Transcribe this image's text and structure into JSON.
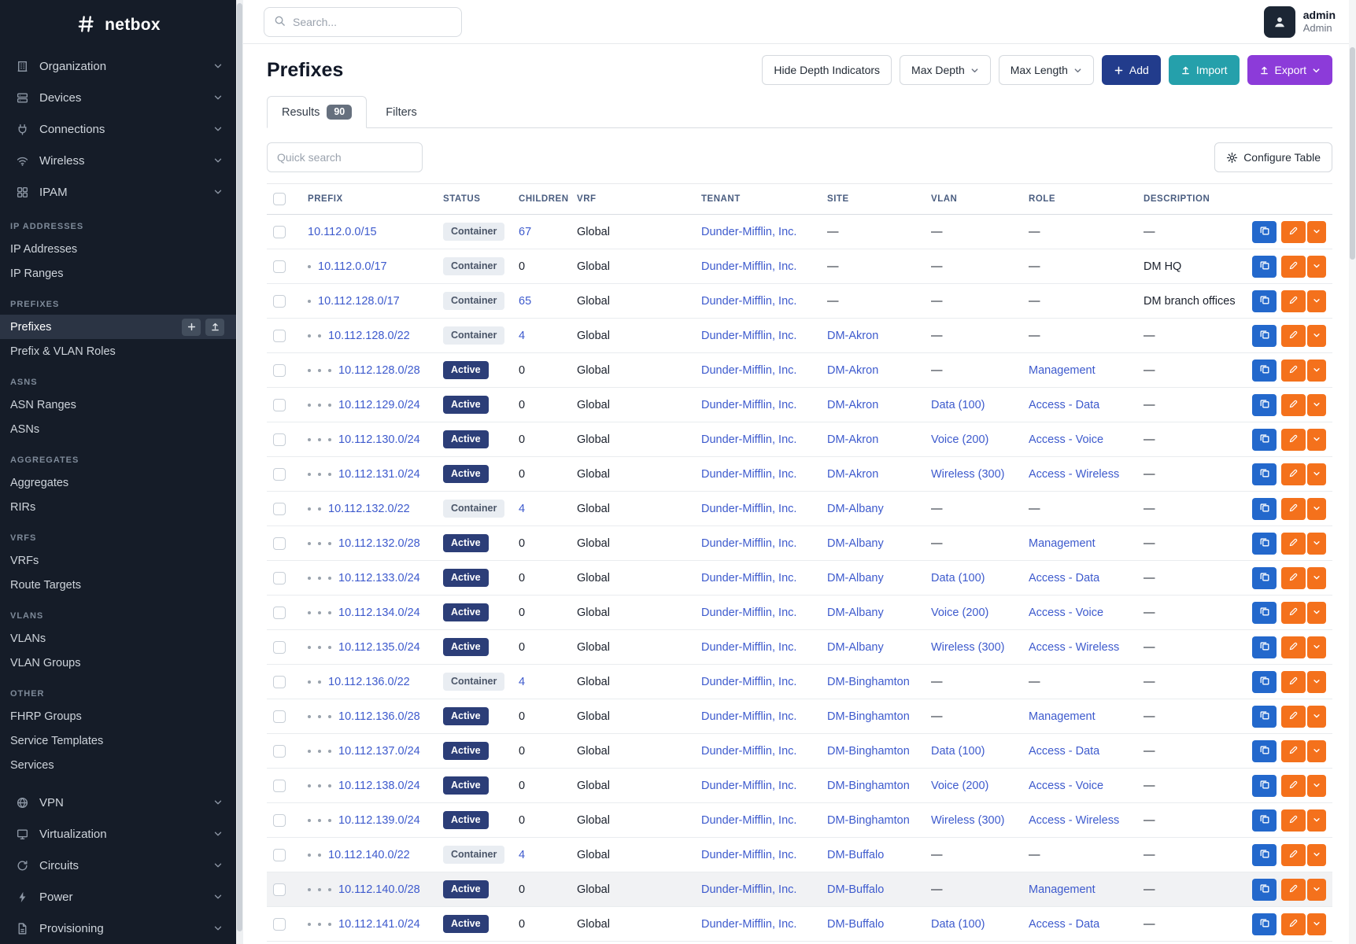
{
  "brand": {
    "name": "netbox"
  },
  "colors": {
    "sidebar-bg": "#151c28",
    "link": "#3d5acd",
    "header-text": "#4a5d80",
    "active-badge": "#2c3e78",
    "container-badge": "#e9edf2",
    "add-button": "#223c8c",
    "import-button": "#25a0ab",
    "export-button": "#8c3bd9",
    "edit-button": "#f4711c",
    "copy-button": "#2368cc"
  },
  "topbar": {
    "search_placeholder": "Search...",
    "user": {
      "name": "admin",
      "role": "Admin"
    }
  },
  "sidebar": {
    "menus": [
      {
        "label": "Organization",
        "icon": "organization-icon"
      },
      {
        "label": "Devices",
        "icon": "devices-icon"
      },
      {
        "label": "Connections",
        "icon": "connections-icon"
      },
      {
        "label": "Wireless",
        "icon": "wireless-icon"
      },
      {
        "label": "IPAM",
        "icon": "ipam-icon"
      }
    ],
    "sections": [
      {
        "title": "IP ADDRESSES",
        "items": [
          {
            "label": "IP Addresses"
          },
          {
            "label": "IP Ranges"
          }
        ]
      },
      {
        "title": "PREFIXES",
        "items": [
          {
            "label": "Prefixes",
            "active": true
          },
          {
            "label": "Prefix & VLAN Roles"
          }
        ]
      },
      {
        "title": "ASNS",
        "items": [
          {
            "label": "ASN Ranges"
          },
          {
            "label": "ASNs"
          }
        ]
      },
      {
        "title": "AGGREGATES",
        "items": [
          {
            "label": "Aggregates"
          },
          {
            "label": "RIRs"
          }
        ]
      },
      {
        "title": "VRFS",
        "items": [
          {
            "label": "VRFs"
          },
          {
            "label": "Route Targets"
          }
        ]
      },
      {
        "title": "VLANS",
        "items": [
          {
            "label": "VLANs"
          },
          {
            "label": "VLAN Groups"
          }
        ]
      },
      {
        "title": "OTHER",
        "items": [
          {
            "label": "FHRP Groups"
          },
          {
            "label": "Service Templates"
          },
          {
            "label": "Services"
          }
        ]
      }
    ],
    "bottom_menus": [
      {
        "label": "VPN",
        "icon": "vpn-icon"
      },
      {
        "label": "Virtualization",
        "icon": "virtualization-icon"
      },
      {
        "label": "Circuits",
        "icon": "circuits-icon"
      },
      {
        "label": "Power",
        "icon": "power-icon"
      },
      {
        "label": "Provisioning",
        "icon": "provisioning-icon"
      }
    ]
  },
  "page": {
    "title": "Prefixes",
    "toolbar": {
      "hide_depth_label": "Hide Depth Indicators",
      "max_depth_label": "Max Depth",
      "max_length_label": "Max Length",
      "add_label": "Add",
      "import_label": "Import",
      "export_label": "Export"
    },
    "tabs": [
      {
        "label": "Results",
        "count": "90",
        "active": true
      },
      {
        "label": "Filters"
      }
    ],
    "quick_search_placeholder": "Quick search",
    "configure_table_label": "Configure Table"
  },
  "table": {
    "columns": [
      "PREFIX",
      "STATUS",
      "CHILDREN",
      "VRF",
      "TENANT",
      "SITE",
      "VLAN",
      "ROLE",
      "DESCRIPTION"
    ],
    "rows": [
      {
        "depth": 0,
        "prefix": "10.112.0.0/15",
        "status": "Container",
        "children": "67",
        "vrf": "Global",
        "tenant": "Dunder-Mifflin, Inc.",
        "site": "—",
        "vlan": "—",
        "role": "—",
        "description": "—"
      },
      {
        "depth": 1,
        "prefix": "10.112.0.0/17",
        "status": "Container",
        "children": "0",
        "vrf": "Global",
        "tenant": "Dunder-Mifflin, Inc.",
        "site": "—",
        "vlan": "—",
        "role": "—",
        "description": "DM HQ"
      },
      {
        "depth": 1,
        "prefix": "10.112.128.0/17",
        "status": "Container",
        "children": "65",
        "vrf": "Global",
        "tenant": "Dunder-Mifflin, Inc.",
        "site": "—",
        "vlan": "—",
        "role": "—",
        "description": "DM branch offices"
      },
      {
        "depth": 2,
        "prefix": "10.112.128.0/22",
        "status": "Container",
        "children": "4",
        "vrf": "Global",
        "tenant": "Dunder-Mifflin, Inc.",
        "site": "DM-Akron",
        "vlan": "—",
        "role": "—",
        "description": "—"
      },
      {
        "depth": 3,
        "prefix": "10.112.128.0/28",
        "status": "Active",
        "children": "0",
        "vrf": "Global",
        "tenant": "Dunder-Mifflin, Inc.",
        "site": "DM-Akron",
        "vlan": "—",
        "role": "Management",
        "description": "—"
      },
      {
        "depth": 3,
        "prefix": "10.112.129.0/24",
        "status": "Active",
        "children": "0",
        "vrf": "Global",
        "tenant": "Dunder-Mifflin, Inc.",
        "site": "DM-Akron",
        "vlan": "Data (100)",
        "role": "Access - Data",
        "description": "—"
      },
      {
        "depth": 3,
        "prefix": "10.112.130.0/24",
        "status": "Active",
        "children": "0",
        "vrf": "Global",
        "tenant": "Dunder-Mifflin, Inc.",
        "site": "DM-Akron",
        "vlan": "Voice (200)",
        "role": "Access - Voice",
        "description": "—"
      },
      {
        "depth": 3,
        "prefix": "10.112.131.0/24",
        "status": "Active",
        "children": "0",
        "vrf": "Global",
        "tenant": "Dunder-Mifflin, Inc.",
        "site": "DM-Akron",
        "vlan": "Wireless (300)",
        "role": "Access - Wireless",
        "description": "—"
      },
      {
        "depth": 2,
        "prefix": "10.112.132.0/22",
        "status": "Container",
        "children": "4",
        "vrf": "Global",
        "tenant": "Dunder-Mifflin, Inc.",
        "site": "DM-Albany",
        "vlan": "—",
        "role": "—",
        "description": "—"
      },
      {
        "depth": 3,
        "prefix": "10.112.132.0/28",
        "status": "Active",
        "children": "0",
        "vrf": "Global",
        "tenant": "Dunder-Mifflin, Inc.",
        "site": "DM-Albany",
        "vlan": "—",
        "role": "Management",
        "description": "—"
      },
      {
        "depth": 3,
        "prefix": "10.112.133.0/24",
        "status": "Active",
        "children": "0",
        "vrf": "Global",
        "tenant": "Dunder-Mifflin, Inc.",
        "site": "DM-Albany",
        "vlan": "Data (100)",
        "role": "Access - Data",
        "description": "—"
      },
      {
        "depth": 3,
        "prefix": "10.112.134.0/24",
        "status": "Active",
        "children": "0",
        "vrf": "Global",
        "tenant": "Dunder-Mifflin, Inc.",
        "site": "DM-Albany",
        "vlan": "Voice (200)",
        "role": "Access - Voice",
        "description": "—"
      },
      {
        "depth": 3,
        "prefix": "10.112.135.0/24",
        "status": "Active",
        "children": "0",
        "vrf": "Global",
        "tenant": "Dunder-Mifflin, Inc.",
        "site": "DM-Albany",
        "vlan": "Wireless (300)",
        "role": "Access - Wireless",
        "description": "—"
      },
      {
        "depth": 2,
        "prefix": "10.112.136.0/22",
        "status": "Container",
        "children": "4",
        "vrf": "Global",
        "tenant": "Dunder-Mifflin, Inc.",
        "site": "DM-Binghamton",
        "vlan": "—",
        "role": "—",
        "description": "—"
      },
      {
        "depth": 3,
        "prefix": "10.112.136.0/28",
        "status": "Active",
        "children": "0",
        "vrf": "Global",
        "tenant": "Dunder-Mifflin, Inc.",
        "site": "DM-Binghamton",
        "vlan": "—",
        "role": "Management",
        "description": "—"
      },
      {
        "depth": 3,
        "prefix": "10.112.137.0/24",
        "status": "Active",
        "children": "0",
        "vrf": "Global",
        "tenant": "Dunder-Mifflin, Inc.",
        "site": "DM-Binghamton",
        "vlan": "Data (100)",
        "role": "Access - Data",
        "description": "—"
      },
      {
        "depth": 3,
        "prefix": "10.112.138.0/24",
        "status": "Active",
        "children": "0",
        "vrf": "Global",
        "tenant": "Dunder-Mifflin, Inc.",
        "site": "DM-Binghamton",
        "vlan": "Voice (200)",
        "role": "Access - Voice",
        "description": "—"
      },
      {
        "depth": 3,
        "prefix": "10.112.139.0/24",
        "status": "Active",
        "children": "0",
        "vrf": "Global",
        "tenant": "Dunder-Mifflin, Inc.",
        "site": "DM-Binghamton",
        "vlan": "Wireless (300)",
        "role": "Access - Wireless",
        "description": "—"
      },
      {
        "depth": 2,
        "prefix": "10.112.140.0/22",
        "status": "Container",
        "children": "4",
        "vrf": "Global",
        "tenant": "Dunder-Mifflin, Inc.",
        "site": "DM-Buffalo",
        "vlan": "—",
        "role": "—",
        "description": "—"
      },
      {
        "depth": 3,
        "prefix": "10.112.140.0/28",
        "status": "Active",
        "children": "0",
        "vrf": "Global",
        "tenant": "Dunder-Mifflin, Inc.",
        "site": "DM-Buffalo",
        "vlan": "—",
        "role": "Management",
        "description": "—",
        "highlighted": true
      },
      {
        "depth": 3,
        "prefix": "10.112.141.0/24",
        "status": "Active",
        "children": "0",
        "vrf": "Global",
        "tenant": "Dunder-Mifflin, Inc.",
        "site": "DM-Buffalo",
        "vlan": "Data (100)",
        "role": "Access - Data",
        "description": "—"
      }
    ]
  }
}
